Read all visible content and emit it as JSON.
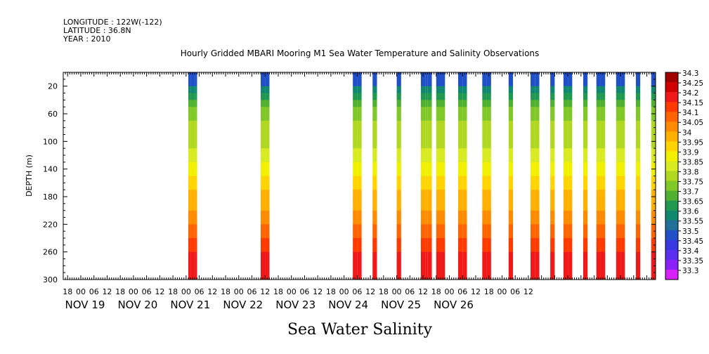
{
  "header": {
    "longitude": "LONGITUDE : 122W(-122)",
    "latitude": "LATITUDE : 36.8N",
    "year": "YEAR : 2010"
  },
  "chart_data": {
    "type": "heatmap",
    "title": "Hourly Gridded MBARI Mooring M1 Sea Water Temperature and Salinity Observations",
    "subtitle": "Sea Water Salinity",
    "ylabel": "DEPTH (m)",
    "xlim_hours": [
      -104,
      166
    ],
    "ylim": [
      300,
      0
    ],
    "y_ticks": [
      20,
      60,
      100,
      140,
      180,
      220,
      260,
      300
    ],
    "x_hour_labels": [
      "18",
      "00",
      "06",
      "12",
      "18",
      "00",
      "06",
      "12",
      "18",
      "00",
      "06",
      "12",
      "18",
      "00",
      "06",
      "12",
      "18",
      "00",
      "06",
      "12",
      "18",
      "00",
      "06",
      "12",
      "18",
      "00",
      "06",
      "12",
      "18",
      "00",
      "06",
      "12",
      "18",
      "00",
      "06",
      "12"
    ],
    "x_day_labels": [
      "NOV 19",
      "NOV 20",
      "NOV 21",
      "NOV 22",
      "NOV 23",
      "NOV 24",
      "NOV 25",
      "NOV 26"
    ],
    "colorbar_levels": [
      "34.3",
      "34.25",
      "34.2",
      "34.15",
      "34.1",
      "34.05",
      "34",
      "33.95",
      "33.9",
      "33.85",
      "33.8",
      "33.75",
      "33.7",
      "33.65",
      "33.6",
      "33.55",
      "33.5",
      "33.45",
      "33.4",
      "33.35",
      "33.3"
    ],
    "colorbar_colors": [
      "#a00000",
      "#d00000",
      "#f01818",
      "#ff3a00",
      "#ff6400",
      "#ff8c00",
      "#ffb000",
      "#ffd400",
      "#f0f000",
      "#d8ea20",
      "#b0d820",
      "#80c828",
      "#50b030",
      "#209850",
      "#108870",
      "#20709a",
      "#2050c8",
      "#3838e0",
      "#5a30f0",
      "#8a20f8",
      "#d820f8"
    ],
    "depth_profile": [
      {
        "depth": 10,
        "salinity": 33.5
      },
      {
        "depth": 25,
        "salinity": 33.6
      },
      {
        "depth": 40,
        "salinity": 33.7
      },
      {
        "depth": 60,
        "salinity": 33.78
      },
      {
        "depth": 90,
        "salinity": 33.82
      },
      {
        "depth": 115,
        "salinity": 33.86
      },
      {
        "depth": 135,
        "salinity": 33.92
      },
      {
        "depth": 160,
        "salinity": 33.97
      },
      {
        "depth": 190,
        "salinity": 34.03
      },
      {
        "depth": 215,
        "salinity": 34.08
      },
      {
        "depth": 240,
        "salinity": 34.15
      },
      {
        "depth": 265,
        "salinity": 34.2
      },
      {
        "depth": 300,
        "salinity": 34.22
      }
    ],
    "observation_windows_hours": [
      [
        -14,
        -12
      ],
      [
        -13,
        -12
      ],
      [
        -12,
        -10
      ],
      [
        -47,
        -46
      ],
      [
        -46,
        -44
      ],
      [
        -44,
        -43
      ],
      [
        28,
        30
      ],
      [
        30,
        31
      ],
      [
        31,
        32
      ],
      [
        37,
        39
      ],
      [
        48,
        50
      ],
      [
        59,
        61
      ],
      [
        61,
        62
      ],
      [
        62,
        64
      ],
      [
        66,
        68
      ],
      [
        68,
        70
      ],
      [
        76,
        78
      ],
      [
        78,
        80
      ],
      [
        87,
        89
      ],
      [
        89,
        91
      ],
      [
        99,
        101
      ],
      [
        109,
        111
      ],
      [
        111,
        113
      ],
      [
        118,
        120
      ],
      [
        124,
        126
      ],
      [
        126,
        128
      ],
      [
        133,
        135
      ],
      [
        139,
        141
      ],
      [
        141,
        143
      ],
      [
        148,
        150
      ],
      [
        150,
        152
      ],
      [
        157,
        159
      ],
      [
        164,
        166
      ]
    ]
  }
}
